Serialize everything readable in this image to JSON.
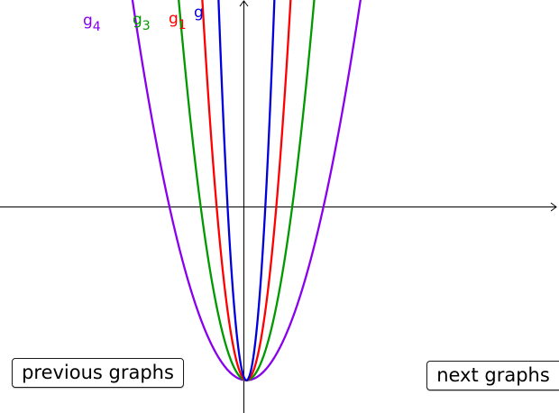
{
  "buttons": {
    "previous_label": "previous graphs",
    "next_label": "next graphs"
  },
  "chart_data": {
    "type": "line",
    "xlim": [
      -4.85,
      6.15
    ],
    "ylim": [
      -4.15,
      4.05
    ],
    "grid": false,
    "series": [
      {
        "name": "g",
        "color": "#0000dd",
        "label_main": "g",
        "label_sub": "",
        "a": 25.0,
        "h": 0,
        "k": -3.5
      },
      {
        "name": "g1",
        "color": "#ff0000",
        "label_main": "g",
        "label_sub": "1",
        "a": 10.0,
        "h": 0,
        "k": -3.5
      },
      {
        "name": "g3",
        "color": "#009900",
        "label_main": "g",
        "label_sub": "3",
        "a": 4.25,
        "h": 0,
        "k": -3.5
      },
      {
        "name": "g4",
        "color": "#8800ee",
        "label_main": "g",
        "label_sub": "4",
        "a": 1.5,
        "h": 0,
        "k": -3.5
      }
    ]
  }
}
